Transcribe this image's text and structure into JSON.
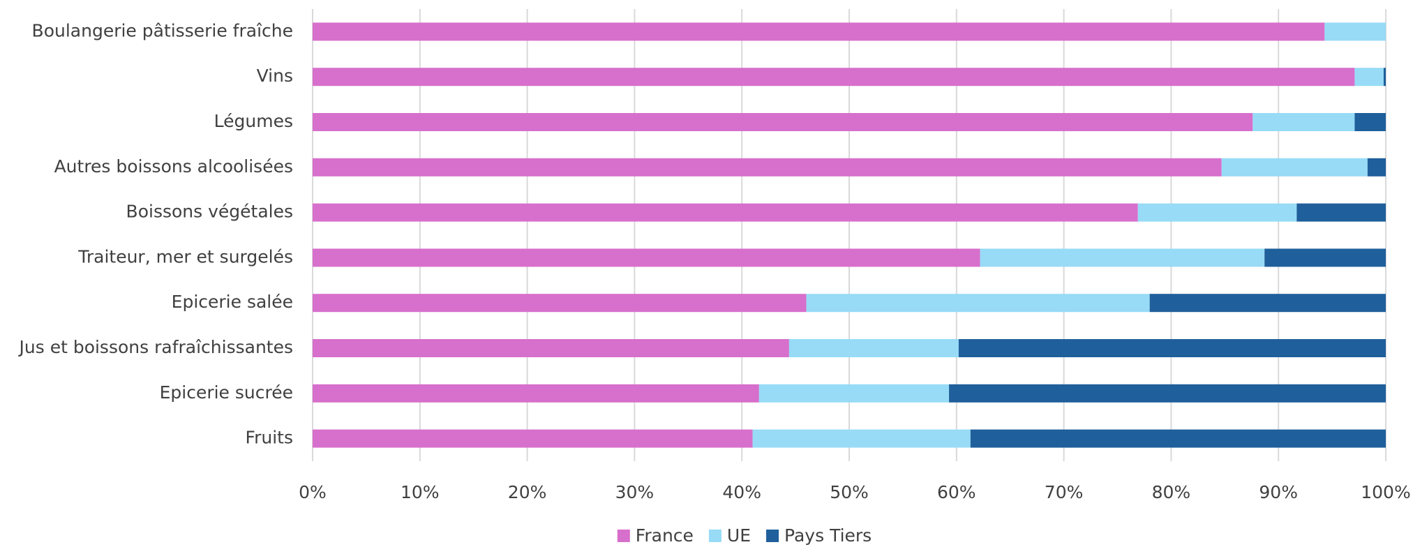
{
  "chart_data": {
    "type": "stacked-bar-horizontal",
    "categories": [
      "Boulangerie pâtisserie fraîche",
      "Vins",
      "Légumes",
      "Autres boissons alcoolisées",
      "Boissons végétales",
      "Traiteur, mer et surgelés",
      "Epicerie salée",
      "Jus et boissons rafraîchissantes",
      "Epicerie sucrée",
      "Fruits"
    ],
    "series": [
      {
        "name": "France",
        "color": "#d76fcc",
        "values": [
          94.3,
          97.1,
          87.6,
          84.7,
          76.9,
          62.2,
          46.0,
          44.4,
          41.6,
          41.0
        ]
      },
      {
        "name": "UE",
        "color": "#97dbf6",
        "values": [
          5.7,
          2.7,
          9.5,
          13.6,
          14.8,
          26.5,
          32.0,
          15.8,
          17.7,
          20.3
        ]
      },
      {
        "name": "Pays Tiers",
        "color": "#1f5f9b",
        "values": [
          0,
          0.2,
          2.9,
          1.7,
          8.3,
          11.3,
          22.0,
          39.8,
          40.7,
          38.7
        ]
      }
    ],
    "xlim": [
      0,
      100
    ],
    "xticks": [
      {
        "value": 0,
        "label": "0%"
      },
      {
        "value": 10,
        "label": "10%"
      },
      {
        "value": 20,
        "label": "20%"
      },
      {
        "value": 30,
        "label": "30%"
      },
      {
        "value": 40,
        "label": "40%"
      },
      {
        "value": 50,
        "label": "50%"
      },
      {
        "value": 60,
        "label": "60%"
      },
      {
        "value": 70,
        "label": "70%"
      },
      {
        "value": 80,
        "label": "80%"
      },
      {
        "value": 90,
        "label": "90%"
      },
      {
        "value": 100,
        "label": "100%"
      }
    ],
    "grid": true,
    "legend": "bottom"
  }
}
